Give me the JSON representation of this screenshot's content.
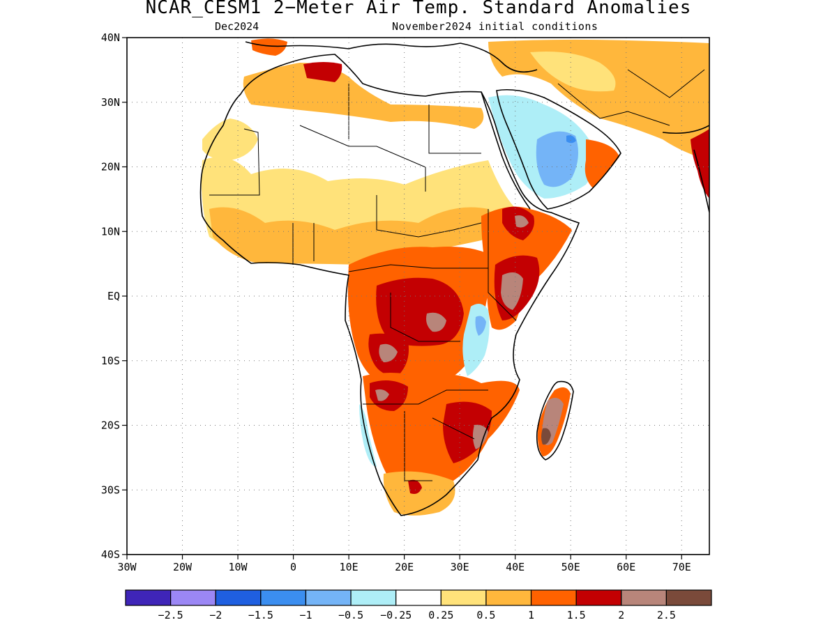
{
  "title": "NCAR_CESM1 2−Meter Air Temp. Standard Anomalies",
  "subtitle_left": "Dec2024",
  "subtitle_right": "November2024 initial conditions",
  "map": {
    "lon_range": [
      -30,
      75
    ],
    "lat_range": [
      -40,
      40
    ],
    "grid": true,
    "lat_ticks": [
      {
        "value": 40,
        "label": "40N"
      },
      {
        "value": 30,
        "label": "30N"
      },
      {
        "value": 20,
        "label": "20N"
      },
      {
        "value": 10,
        "label": "10N"
      },
      {
        "value": 0,
        "label": "EQ"
      },
      {
        "value": -10,
        "label": "10S"
      },
      {
        "value": -20,
        "label": "20S"
      },
      {
        "value": -30,
        "label": "30S"
      },
      {
        "value": -40,
        "label": "40S"
      }
    ],
    "lon_ticks": [
      {
        "value": -30,
        "label": "30W"
      },
      {
        "value": -20,
        "label": "20W"
      },
      {
        "value": -10,
        "label": "10W"
      },
      {
        "value": 0,
        "label": "0"
      },
      {
        "value": 10,
        "label": "10E"
      },
      {
        "value": 20,
        "label": "20E"
      },
      {
        "value": 30,
        "label": "30E"
      },
      {
        "value": 40,
        "label": "40E"
      },
      {
        "value": 50,
        "label": "50E"
      },
      {
        "value": 60,
        "label": "60E"
      },
      {
        "value": 70,
        "label": "70E"
      }
    ]
  },
  "colorbar": {
    "colors": [
      "#3f25b8",
      "#9b87f5",
      "#1f5fe0",
      "#3b8ef0",
      "#74b4f7",
      "#aeeef7",
      "#ffffff",
      "#ffe27a",
      "#ffb73c",
      "#ff6200",
      "#c30002",
      "#b8857a",
      "#7a4a3a"
    ],
    "labels": [
      "−2.5",
      "−2",
      "−1.5",
      "−1",
      "−0.5",
      "−0.25",
      "0.25",
      "0.5",
      "1",
      "1.5",
      "2",
      "2.5"
    ]
  },
  "chart_data": {
    "type": "heatmap",
    "title": "NCAR_CESM1 2−Meter Air Temp. Standard Anomalies",
    "subtitle": "Dec2024 — November2024 initial conditions",
    "xlim": [
      -30,
      75
    ],
    "ylim": [
      -40,
      40
    ],
    "levels": [
      -2.5,
      -2,
      -1.5,
      -1,
      -0.5,
      -0.25,
      0.25,
      0.5,
      1,
      1.5,
      2,
      2.5
    ],
    "regions": [
      {
        "region": "Sahara interior",
        "level_class": "near normal (-0.25 to 0.25)"
      },
      {
        "region": "Arabian Peninsula interior",
        "level_class": "below normal (-1.5 to -0.25)"
      },
      {
        "region": "Central Africa / Congo Basin",
        "level_class": "2 to 2.5+"
      },
      {
        "region": "East Africa (Ethiopia–Kenya)",
        "level_class": "2 to 2.5+"
      },
      {
        "region": "Southern Africa",
        "level_class": "1 to 2"
      },
      {
        "region": "Madagascar",
        "level_class": "2.5+"
      },
      {
        "region": "Lake Tanganyika area",
        "level_class": "below normal (-1 to -0.25)"
      }
    ]
  }
}
